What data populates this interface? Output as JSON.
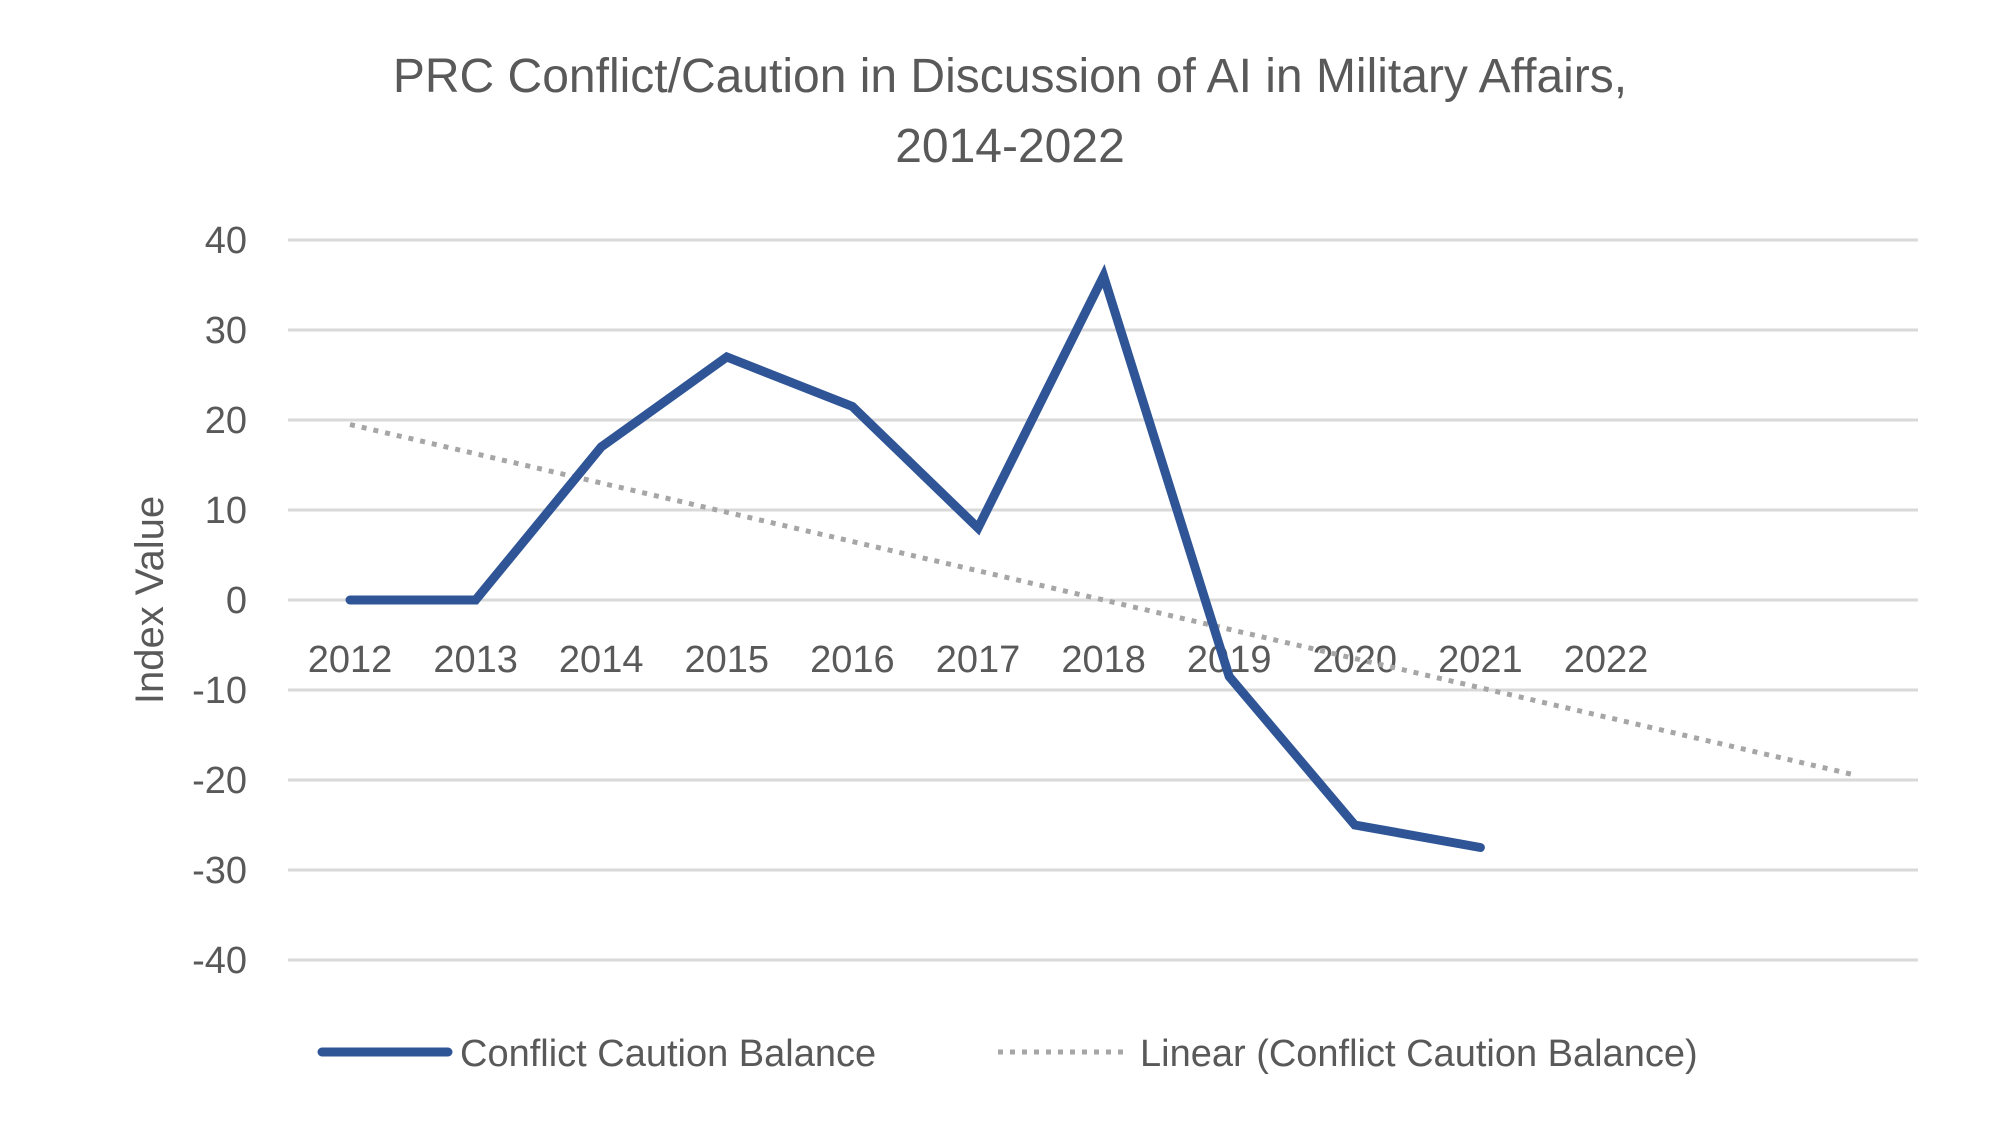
{
  "chart_data": {
    "type": "line",
    "title_lines": [
      "PRC Conflict/Caution in Discussion of AI in Military Affairs,",
      "2014-2022"
    ],
    "ylabel": "Index Value",
    "xlabel": "",
    "ylim": [
      -40,
      40
    ],
    "y_ticks": [
      40,
      30,
      20,
      10,
      0,
      -10,
      -20,
      -30,
      -40
    ],
    "categories": [
      "2012",
      "2013",
      "2014",
      "2015",
      "2016",
      "2017",
      "2018",
      "2019",
      "2020",
      "2021",
      "2022"
    ],
    "series": [
      {
        "name": "Conflict Caution Balance",
        "color": "#2f5597",
        "values": [
          0,
          0,
          17,
          27,
          21.5,
          8,
          36,
          -8.5,
          -25,
          -27.5,
          null
        ]
      },
      {
        "name": "Linear (Conflict Caution Balance)",
        "color": "#a6a6a6",
        "style": "dotted",
        "trend_endpoints": [
          19.5,
          -19.5
        ]
      }
    ],
    "grid": true,
    "legend_position": "bottom"
  }
}
